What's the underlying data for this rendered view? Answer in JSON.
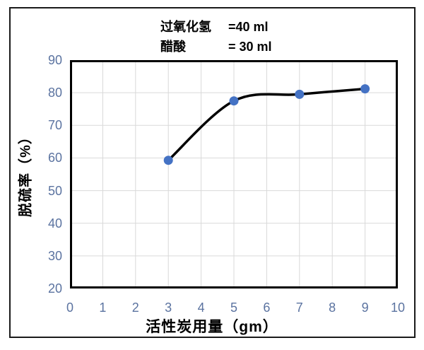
{
  "figure": {
    "title_lines": [
      {
        "label": "过氧化氢",
        "value": "=40 ml"
      },
      {
        "label": "醋酸",
        "value": "= 30 ml"
      }
    ],
    "x_axis_title": "活性炭用量（gm）",
    "y_axis_title": "脱硫率（%）"
  },
  "chart_data": {
    "type": "line",
    "title": "过氧化氢 =40 ml ; 醋酸 = 30 ml",
    "xlabel": "活性炭用量（gm）",
    "ylabel": "脱硫率（%）",
    "x": [
      3,
      5,
      7,
      9
    ],
    "y": [
      59.3,
      77.5,
      79.5,
      81.2
    ],
    "xlim": [
      0,
      10
    ],
    "ylim": [
      20,
      90
    ],
    "x_ticks": [
      0,
      1,
      2,
      3,
      4,
      5,
      6,
      7,
      8,
      9,
      10
    ],
    "y_ticks": [
      20,
      30,
      40,
      50,
      60,
      70,
      80,
      90
    ],
    "grid": true,
    "smooth": true,
    "legend": "none",
    "colors": {
      "line": "#000000",
      "marker": "#4472C4",
      "grid": "#d9d9d9",
      "tick_label": "#5b73a0",
      "plot_border": "#000000",
      "frame_border": "#1a1a1a"
    }
  }
}
